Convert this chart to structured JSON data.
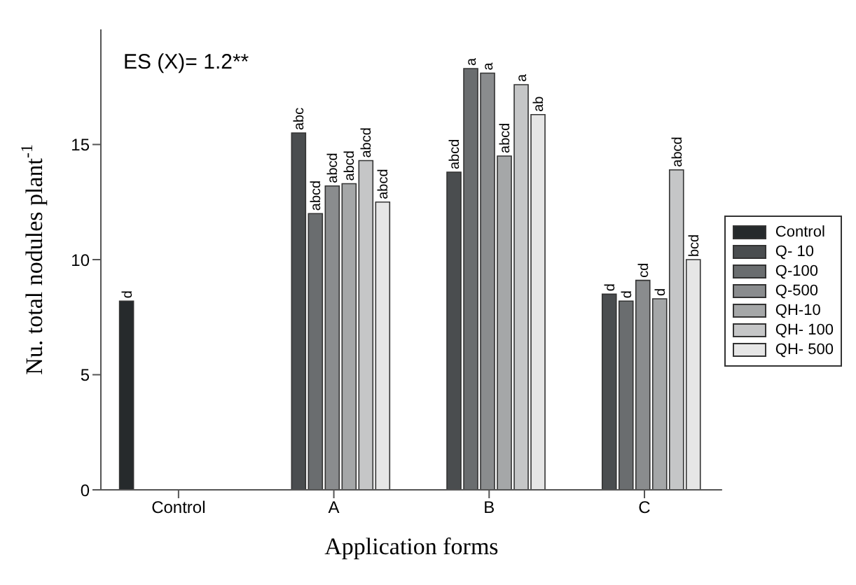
{
  "chart_data": {
    "type": "bar",
    "xlabel": "Application forms",
    "ylabel": "Nu. total nodules plant$^{-1}$",
    "annotations": [
      "ES (X)= 1.2**"
    ],
    "categories": [
      "Control",
      "A",
      "B",
      "C"
    ],
    "series": [
      {
        "name": "Control",
        "color": "#262a2c",
        "values": [
          8.2,
          null,
          null,
          null
        ],
        "value_labels": [
          "d",
          null,
          null,
          null
        ]
      },
      {
        "name": "Q- 10",
        "color": "#4a4d4f",
        "values": [
          null,
          15.5,
          13.8,
          8.5
        ],
        "value_labels": [
          null,
          "abc",
          "abcd",
          "d"
        ]
      },
      {
        "name": "Q-100",
        "color": "#6a6d6f",
        "values": [
          null,
          12.0,
          18.3,
          8.2
        ],
        "value_labels": [
          null,
          "abcd",
          "a",
          "d"
        ]
      },
      {
        "name": "Q-500",
        "color": "#8a8c8e",
        "values": [
          null,
          13.2,
          18.1,
          9.1
        ],
        "value_labels": [
          null,
          "abcd",
          "a",
          "cd"
        ]
      },
      {
        "name": "QH-10",
        "color": "#a5a7a8",
        "values": [
          null,
          13.3,
          14.5,
          8.3
        ],
        "value_labels": [
          null,
          "abcd",
          "abcd",
          "d"
        ]
      },
      {
        "name": "QH- 100",
        "color": "#c5c6c7",
        "values": [
          null,
          14.3,
          17.6,
          13.9
        ],
        "value_labels": [
          null,
          "abcd",
          "a",
          "abcd"
        ]
      },
      {
        "name": "QH- 500",
        "color": "#e6e6e6",
        "values": [
          null,
          12.5,
          16.3,
          10.0
        ],
        "value_labels": [
          null,
          "abcd",
          "ab",
          "bcd"
        ]
      }
    ],
    "ylim": [
      0,
      20
    ],
    "yticks": [
      0,
      5,
      10,
      15
    ],
    "legend": "right",
    "grid": false
  }
}
